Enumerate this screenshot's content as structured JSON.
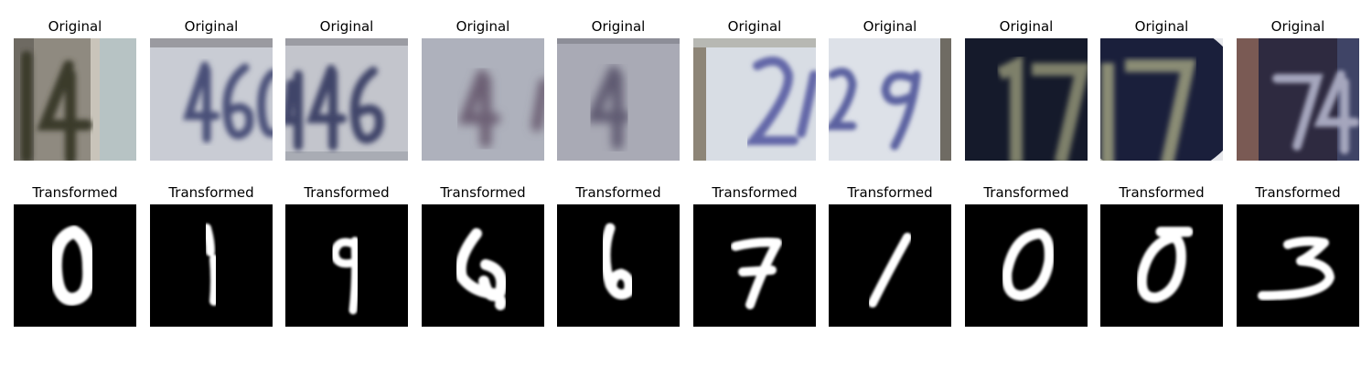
{
  "figure": {
    "rows": [
      {
        "name": "original",
        "panels": [
          {
            "title": "Original",
            "digits": "14",
            "bg": "#9a9489",
            "bg2": "#b7c3c4",
            "fg": "#3a3a2c",
            "image_label": "original-image-1"
          },
          {
            "title": "Original",
            "digits": "466",
            "bg": "#c9ccd4",
            "bg2": "#bfc2cb",
            "fg": "#4a4f78",
            "image_label": "original-image-2"
          },
          {
            "title": "Original",
            "digits": "46",
            "bg": "#c3c5cc",
            "bg2": "#a9acb4",
            "fg": "#3f4469",
            "image_label": "original-image-3"
          },
          {
            "title": "Original",
            "digits": "4",
            "bg": "#aeb1bc",
            "bg2": "#a4a7b2",
            "fg": "#6c5e73",
            "image_label": "original-image-4"
          },
          {
            "title": "Original",
            "digits": "4",
            "bg": "#a9aab5",
            "bg2": "#a3a4ae",
            "fg": "#5e5a71",
            "image_label": "original-image-5"
          },
          {
            "title": "Original",
            "digits": "2",
            "bg": "#d8dde4",
            "bg2": "#8d8577",
            "fg": "#6468a8",
            "image_label": "original-image-6"
          },
          {
            "title": "Original",
            "digits": "29",
            "bg": "#dde1e8",
            "bg2": "#6f6b63",
            "fg": "#5b62a0",
            "image_label": "original-image-7"
          },
          {
            "title": "Original",
            "digits": "17",
            "bg": "#151a2b",
            "bg2": "#2a2f3d",
            "fg": "#7e806b",
            "image_label": "original-image-8"
          },
          {
            "title": "Original",
            "digits": "17",
            "bg": "#1a1f3b",
            "bg2": "#2a3056",
            "fg": "#8a8c74",
            "image_label": "original-image-9"
          },
          {
            "title": "Original",
            "digits": "74",
            "bg": "#3a3247",
            "bg2": "#7a5a54",
            "fg": "#a5a6bd",
            "image_label": "original-image-10"
          }
        ]
      },
      {
        "name": "transformed",
        "panels": [
          {
            "title": "Transformed",
            "digit": "0",
            "image_label": "transformed-image-1"
          },
          {
            "title": "Transformed",
            "digit": "1",
            "image_label": "transformed-image-2"
          },
          {
            "title": "Transformed",
            "digit": "9",
            "image_label": "transformed-image-3"
          },
          {
            "title": "Transformed",
            "digit": "4",
            "image_label": "transformed-image-4"
          },
          {
            "title": "Transformed",
            "digit": "6",
            "image_label": "transformed-image-5"
          },
          {
            "title": "Transformed",
            "digit": "7",
            "image_label": "transformed-image-6"
          },
          {
            "title": "Transformed",
            "digit": "1",
            "image_label": "transformed-image-7"
          },
          {
            "title": "Transformed",
            "digit": "0",
            "image_label": "transformed-image-8"
          },
          {
            "title": "Transformed",
            "digit": "0",
            "image_label": "transformed-image-9"
          },
          {
            "title": "Transformed",
            "digit": "3",
            "image_label": "transformed-image-10"
          }
        ]
      }
    ],
    "colors": {
      "transformed_bg": "#000000",
      "transformed_fg": "#ffffff",
      "title_text": "#000000"
    }
  }
}
